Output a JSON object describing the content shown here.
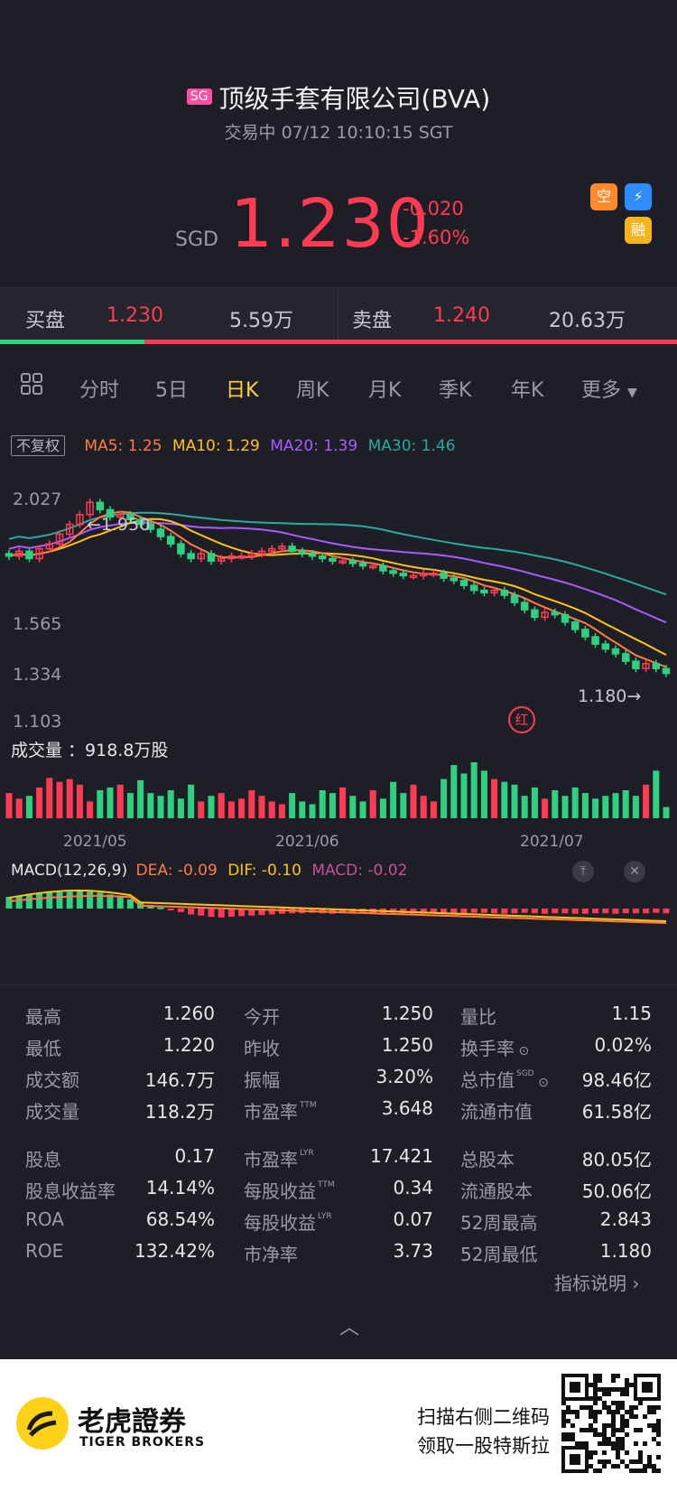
{
  "header": {
    "market_badge": "SG",
    "title": "顶级手套有限公司(BVA)",
    "status": "交易中 07/12 10:10:15 SGT",
    "currency": "SGD",
    "price": "1.230",
    "change": "-0.020",
    "change_pct": "-1.60%",
    "icons": [
      "空",
      "融"
    ]
  },
  "bidask": {
    "bid_label": "买盘",
    "bid_price": "1.230",
    "bid_vol": "5.59万",
    "ask_label": "卖盘",
    "ask_price": "1.240",
    "ask_vol": "20.63万"
  },
  "tabs": [
    "分时",
    "5日",
    "日K",
    "周K",
    "月K",
    "季K",
    "年K",
    "更多"
  ],
  "active_tab": "日K",
  "indicators": {
    "adjust": "不复权",
    "ma5": "MA5: 1.25",
    "ma10": "MA10: 1.29",
    "ma20": "MA20: 1.39",
    "ma30": "MA30: 1.46"
  },
  "colors": {
    "up": "#ff3b54",
    "down": "#2fd07f",
    "ma5": "#ff7a45",
    "ma10": "#ffc21a",
    "ma20": "#a85cff",
    "ma30": "#2aa9a0"
  },
  "chart_data": {
    "type": "candlestick",
    "price_axis": [
      "2.027",
      "1.565",
      "1.334",
      "1.103"
    ],
    "ylim": [
      1.103,
      2.027
    ],
    "high_marker": "1.950",
    "low_marker": "1.180",
    "month_labels": [
      "2021/05",
      "2021/06",
      "2021/07"
    ],
    "closes": [
      1.71,
      1.73,
      1.7,
      1.74,
      1.76,
      1.8,
      1.84,
      1.88,
      1.93,
      1.9,
      1.87,
      1.88,
      1.86,
      1.84,
      1.82,
      1.79,
      1.76,
      1.72,
      1.7,
      1.72,
      1.69,
      1.7,
      1.71,
      1.71,
      1.72,
      1.73,
      1.74,
      1.75,
      1.73,
      1.72,
      1.71,
      1.7,
      1.69,
      1.69,
      1.68,
      1.67,
      1.67,
      1.65,
      1.64,
      1.63,
      1.63,
      1.64,
      1.64,
      1.62,
      1.61,
      1.59,
      1.57,
      1.56,
      1.57,
      1.55,
      1.52,
      1.49,
      1.46,
      1.48,
      1.47,
      1.44,
      1.41,
      1.38,
      1.35,
      1.33,
      1.31,
      1.28,
      1.25,
      1.27,
      1.25,
      1.23
    ],
    "volume_label": "成交量 ：918.8万股",
    "volumes": [
      0.45,
      0.35,
      0.4,
      0.55,
      0.72,
      0.65,
      0.7,
      0.6,
      0.3,
      0.5,
      0.55,
      0.6,
      0.45,
      0.68,
      0.45,
      0.4,
      0.5,
      0.35,
      0.6,
      0.3,
      0.4,
      0.45,
      0.3,
      0.35,
      0.5,
      0.4,
      0.3,
      0.25,
      0.45,
      0.3,
      0.25,
      0.5,
      0.45,
      0.55,
      0.4,
      0.3,
      0.5,
      0.35,
      0.65,
      0.45,
      0.6,
      0.4,
      0.3,
      0.7,
      0.95,
      0.8,
      1.0,
      0.85,
      0.7,
      0.65,
      0.6,
      0.4,
      0.55,
      0.35,
      0.5,
      0.4,
      0.55,
      0.45,
      0.35,
      0.4,
      0.45,
      0.5,
      0.4,
      0.6,
      0.85,
      0.2
    ],
    "macd_label": "MACD(12,26,9)",
    "dea": "DEA: -0.09",
    "dif": "DIF: -0.10",
    "macd": "MACD: -0.02",
    "macd_hist": [
      0.5,
      0.55,
      0.6,
      0.65,
      0.68,
      0.7,
      0.72,
      0.75,
      0.72,
      0.68,
      0.6,
      0.5,
      0.4,
      0.3,
      0.15,
      0.05,
      -0.05,
      -0.15,
      -0.25,
      -0.3,
      -0.35,
      -0.38,
      -0.35,
      -0.32,
      -0.3,
      -0.28,
      -0.25,
      -0.22,
      -0.2,
      -0.2,
      -0.18,
      -0.2,
      -0.22,
      -0.2,
      -0.18,
      -0.2,
      -0.22,
      -0.2,
      -0.18,
      -0.2,
      -0.22,
      -0.22,
      -0.2,
      -0.2,
      -0.22,
      -0.2,
      -0.18,
      -0.18,
      -0.2,
      -0.22,
      -0.2,
      -0.18,
      -0.2,
      -0.22,
      -0.2,
      -0.2,
      -0.22,
      -0.22,
      -0.2,
      -0.2,
      -0.22,
      -0.2,
      -0.2,
      -0.2,
      -0.18,
      -0.2
    ]
  },
  "stats": {
    "col1": [
      {
        "k": "最高",
        "v": "1.260"
      },
      {
        "k": "最低",
        "v": "1.220"
      },
      {
        "k": "成交额",
        "v": "146.7万"
      },
      {
        "k": "成交量",
        "v": "118.2万"
      },
      {
        "k": "股息",
        "v": "0.17"
      },
      {
        "k": "股息收益率",
        "v": "14.14%"
      },
      {
        "k": "ROA",
        "v": "68.54%"
      },
      {
        "k": "ROE",
        "v": "132.42%"
      }
    ],
    "col2": [
      {
        "k": "今开",
        "v": "1.250",
        "sup": ""
      },
      {
        "k": "昨收",
        "v": "1.250",
        "sup": ""
      },
      {
        "k": "振幅",
        "v": "3.20%",
        "sup": ""
      },
      {
        "k": "市盈率",
        "v": "3.648",
        "sup": "TTM"
      },
      {
        "k": "市盈率",
        "v": "17.421",
        "sup": "LYR"
      },
      {
        "k": "每股收益",
        "v": "0.34",
        "sup": "TTM"
      },
      {
        "k": "每股收益",
        "v": "0.07",
        "sup": "LYR"
      },
      {
        "k": "市净率",
        "v": "3.73",
        "sup": ""
      }
    ],
    "col3": [
      {
        "k": "量比",
        "v": "1.15",
        "sup": ""
      },
      {
        "k": "换手率",
        "v": "0.02%",
        "sup": ""
      },
      {
        "k": "总市值",
        "v": "98.46亿",
        "sup": "SGD"
      },
      {
        "k": "流通市值",
        "v": "61.58亿",
        "sup": ""
      },
      {
        "k": "总股本",
        "v": "80.05亿",
        "sup": ""
      },
      {
        "k": "流通股本",
        "v": "50.06亿",
        "sup": ""
      },
      {
        "k": "52周最高",
        "v": "2.843",
        "sup": ""
      },
      {
        "k": "52周最低",
        "v": "1.180",
        "sup": ""
      }
    ],
    "explain_link": "指标说明"
  },
  "footer": {
    "brand_cn": "老虎證券",
    "brand_en": "TIGER BROKERS",
    "promo_line1": "扫描右侧二维码",
    "promo_line2": "领取一股特斯拉"
  }
}
